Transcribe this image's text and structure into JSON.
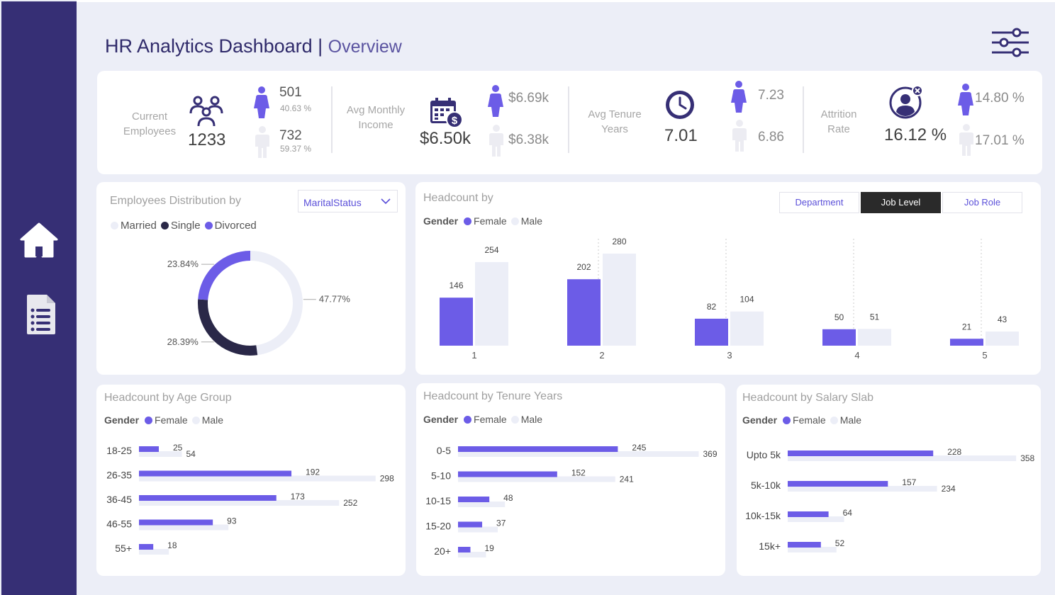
{
  "header": {
    "title": "HR Analytics Dashboard |",
    "subtitle": "Overview"
  },
  "sidebar": {
    "items": [
      {
        "icon": "home-icon"
      },
      {
        "icon": "document-icon"
      }
    ]
  },
  "colors": {
    "sidebar": "#362f75",
    "accent": "#6c5ce7",
    "light": "#eceef7",
    "dark": "#2a2848",
    "title": "#2f2a6a"
  },
  "kpis": {
    "current_employees": {
      "label": "Current Employees",
      "value": "1233",
      "female_count": "501",
      "female_pct": "40.63 %",
      "male_count": "732",
      "male_pct": "59.37 %"
    },
    "avg_monthly_income": {
      "label": "Avg Monthly Income",
      "value": "$6.50k",
      "female": "$6.69k",
      "male": "$6.38k"
    },
    "avg_tenure_years": {
      "label": "Avg Tenure Years",
      "value": "7.01",
      "female": "7.23",
      "male": "6.86"
    },
    "attrition_rate": {
      "label": "Attrition Rate",
      "value": "16.12 %",
      "female": "14.80 %",
      "male": "17.01 %"
    }
  },
  "distribution": {
    "title": "Employees Distribution by",
    "dropdown_value": "MaritalStatus",
    "legend": [
      "Married",
      "Single",
      "Divorced"
    ]
  },
  "headcount_by": {
    "title": "Headcount by",
    "toggle": [
      "Department",
      "Job Level",
      "Job Role"
    ],
    "active_toggle": "Job Level"
  },
  "age_card": {
    "title": "Headcount by Age Group"
  },
  "tenure_card": {
    "title": "Headcount by Tenure Years"
  },
  "salary_card": {
    "title": "Headcount by Salary Slab"
  },
  "gender_legend": {
    "label": "Gender",
    "female": "Female",
    "male": "Male"
  },
  "chart_data": [
    {
      "type": "pie",
      "title": "Employees Distribution by MaritalStatus",
      "categories": [
        "Married",
        "Single",
        "Divorced"
      ],
      "values": [
        47.77,
        28.39,
        23.84
      ],
      "labels": [
        "47.77%",
        "28.39%",
        "23.84%"
      ],
      "colors": [
        "#eceef7",
        "#2a2848",
        "#6c5ce7"
      ]
    },
    {
      "type": "bar",
      "title": "Headcount by",
      "categories": [
        "1",
        "2",
        "3",
        "4",
        "5"
      ],
      "series": [
        {
          "name": "Female",
          "values": [
            146,
            202,
            82,
            50,
            21
          ]
        },
        {
          "name": "Male",
          "values": [
            254,
            280,
            104,
            51,
            43
          ]
        }
      ]
    },
    {
      "type": "bar",
      "orientation": "horizontal",
      "title": "Headcount by Age Group",
      "categories": [
        "18-25",
        "26-35",
        "36-45",
        "46-55",
        "55+"
      ],
      "series": [
        {
          "name": "Female",
          "values": [
            25,
            192,
            173,
            93,
            18
          ]
        },
        {
          "name": "Male",
          "values": [
            54,
            298,
            252,
            null,
            null
          ]
        }
      ]
    },
    {
      "type": "bar",
      "orientation": "horizontal",
      "title": "Headcount by Tenure Years",
      "categories": [
        "0-5",
        "5-10",
        "10-15",
        "15-20",
        "20+"
      ],
      "series": [
        {
          "name": "Female",
          "values": [
            245,
            152,
            48,
            37,
            19
          ]
        },
        {
          "name": "Male",
          "values": [
            369,
            241,
            null,
            null,
            null
          ]
        }
      ]
    },
    {
      "type": "bar",
      "orientation": "horizontal",
      "title": "Headcount by Salary Slab",
      "categories": [
        "Upto 5k",
        "5k-10k",
        "10k-15k",
        "15k+"
      ],
      "series": [
        {
          "name": "Female",
          "values": [
            228,
            157,
            64,
            52
          ]
        },
        {
          "name": "Male",
          "values": [
            358,
            234,
            null,
            null
          ]
        }
      ]
    }
  ]
}
